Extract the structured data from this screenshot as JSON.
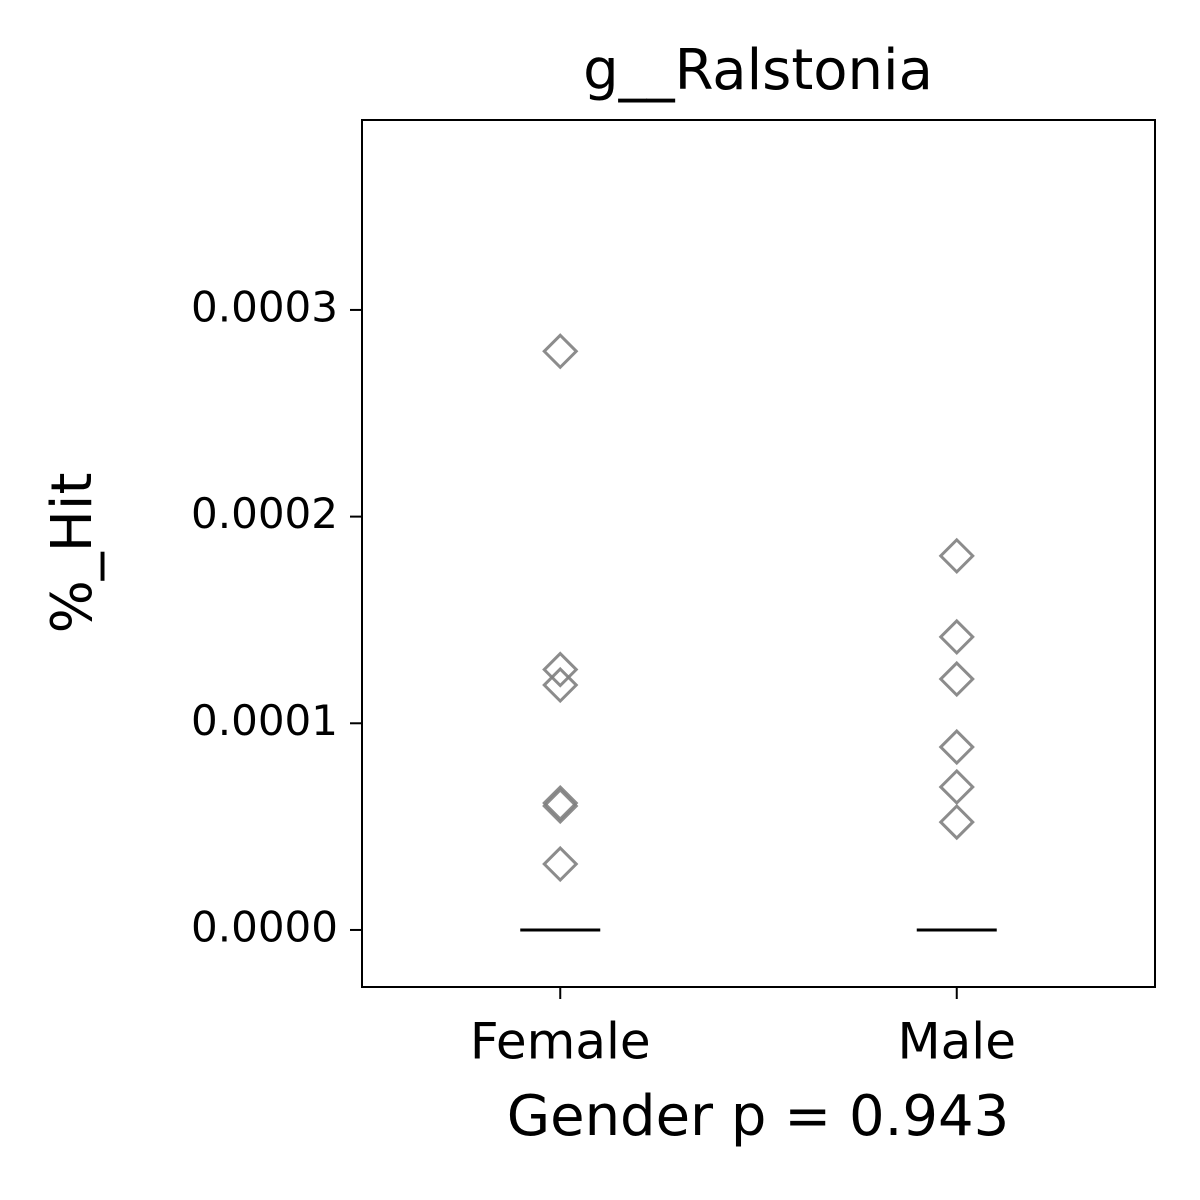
{
  "chart_data": {
    "type": "strip",
    "title": "g__Ralstonia",
    "xlabel": "Gender p = 0.943",
    "ylabel": "%_Hit",
    "categories": [
      "Female",
      "Male"
    ],
    "values": [
      [
        0.00028,
        0.000126,
        0.0001185,
        6.14e-05,
        6e-05,
        3.19e-05
      ],
      [
        0.000181,
        0.0001418,
        0.0001214,
        8.85e-05,
        6.92e-05,
        5.22e-05
      ]
    ],
    "median_values": [
      0,
      0
    ],
    "color": "#808080",
    "marker": "diamond",
    "ylim": [
      -2.76e-05,
      0.0003919
    ],
    "yticks": [
      {
        "value": 0,
        "label": "0.0000"
      },
      {
        "value": 0.0001,
        "label": "0.0001"
      },
      {
        "value": 0.0002,
        "label": "0.0002"
      },
      {
        "value": 0.0003,
        "label": "0.0003"
      }
    ]
  }
}
